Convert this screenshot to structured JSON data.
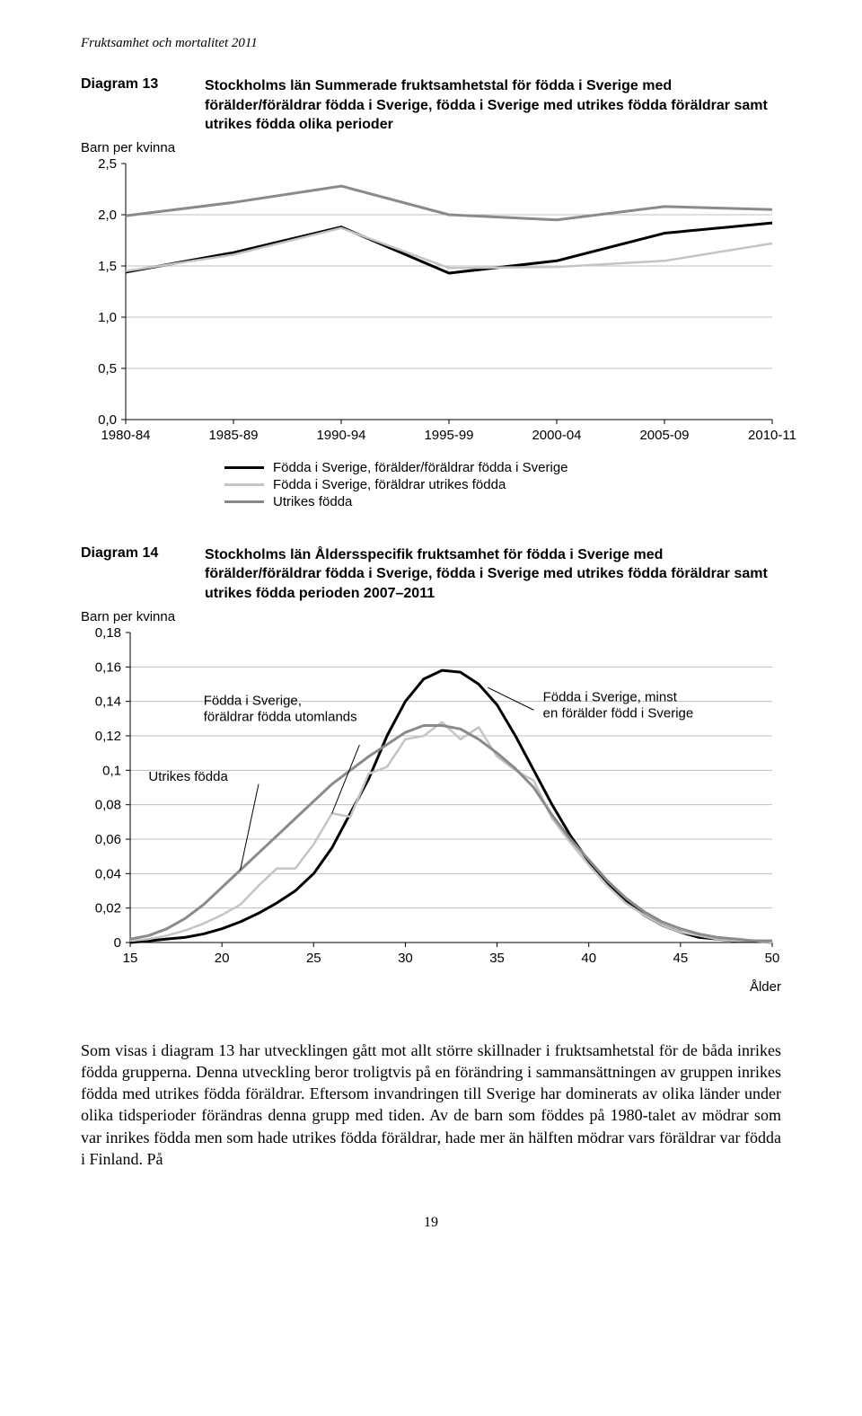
{
  "page": {
    "header": "Fruktsamhet och mortalitet 2011",
    "number": "19"
  },
  "diagram13": {
    "label": "Diagram 13",
    "title": "Stockholms län Summerade fruktsamhetstal för födda i Sverige med förälder/föräldrar födda i Sverige, födda i Sverige med utrikes födda föräldrar samt utrikes födda olika perioder",
    "y_axis_label": "Barn per kvinna",
    "type": "line",
    "categories": [
      "1980-84",
      "1985-89",
      "1990-94",
      "1995-99",
      "2000-04",
      "2005-09",
      "2010-11"
    ],
    "ylim": [
      0.0,
      2.5
    ],
    "ytick_step": 0.5,
    "ytick_labels": [
      "0,0",
      "0,5",
      "1,0",
      "1,5",
      "2,0",
      "2,5"
    ],
    "series": [
      {
        "name": "Födda i Sverige, förälder/föräldrar födda i Sverige",
        "color": "#000000",
        "width": 3,
        "values": [
          1.44,
          1.63,
          1.88,
          1.43,
          1.55,
          1.82,
          1.92
        ]
      },
      {
        "name": "Födda i Sverige, föräldrar utrikes födda",
        "color": "#c4c4c4",
        "width": 2.5,
        "values": [
          1.45,
          1.61,
          1.87,
          1.48,
          1.49,
          1.55,
          1.72
        ]
      },
      {
        "name": "Utrikes födda",
        "color": "#8a8a8a",
        "width": 3,
        "values": [
          1.99,
          2.12,
          2.28,
          2.0,
          1.95,
          2.08,
          2.05
        ]
      }
    ]
  },
  "diagram14": {
    "label": "Diagram 14",
    "title": "Stockholms län Åldersspecifik fruktsamhet för födda i Sverige med förälder/föräldrar födda i Sverige, födda i Sverige med utrikes födda föräldrar samt utrikes födda perioden 2007–2011",
    "y_axis_label": "Barn per kvinna",
    "x_axis_label": "Ålder",
    "type": "line",
    "xlim": [
      15,
      50
    ],
    "xtick_step": 5,
    "ylim": [
      0,
      0.18
    ],
    "ytick_step": 0.02,
    "ytick_labels": [
      "0",
      "0,02",
      "0,04",
      "0,06",
      "0,08",
      "0,1",
      "0,12",
      "0,14",
      "0,16",
      "0,18"
    ],
    "annotations": {
      "a1": "Födda i Sverige,\nföräldrar födda utomlands",
      "a2": "Utrikes födda",
      "a3": "Födda i Sverige, minst\nen förälder född i Sverige"
    },
    "series": [
      {
        "name": "Födda i Sverige minst en förälder född i Sverige",
        "color": "#000000",
        "width": 3,
        "values": [
          [
            15,
            0.0
          ],
          [
            16,
            0.001
          ],
          [
            17,
            0.002
          ],
          [
            18,
            0.003
          ],
          [
            19,
            0.005
          ],
          [
            20,
            0.008
          ],
          [
            21,
            0.012
          ],
          [
            22,
            0.017
          ],
          [
            23,
            0.023
          ],
          [
            24,
            0.03
          ],
          [
            25,
            0.04
          ],
          [
            26,
            0.055
          ],
          [
            27,
            0.075
          ],
          [
            28,
            0.095
          ],
          [
            29,
            0.12
          ],
          [
            30,
            0.14
          ],
          [
            31,
            0.153
          ],
          [
            32,
            0.158
          ],
          [
            33,
            0.157
          ],
          [
            34,
            0.15
          ],
          [
            35,
            0.138
          ],
          [
            36,
            0.12
          ],
          [
            37,
            0.1
          ],
          [
            38,
            0.08
          ],
          [
            39,
            0.062
          ],
          [
            40,
            0.047
          ],
          [
            41,
            0.035
          ],
          [
            42,
            0.024
          ],
          [
            43,
            0.016
          ],
          [
            44,
            0.01
          ],
          [
            45,
            0.006
          ],
          [
            46,
            0.003
          ],
          [
            47,
            0.002
          ],
          [
            48,
            0.001
          ],
          [
            49,
            0.001
          ],
          [
            50,
            0.0
          ]
        ]
      },
      {
        "name": "Födda i Sverige föräldrar födda utomlands",
        "color": "#c4c4c4",
        "width": 2.5,
        "values": [
          [
            15,
            0.001
          ],
          [
            16,
            0.002
          ],
          [
            17,
            0.004
          ],
          [
            18,
            0.007
          ],
          [
            19,
            0.011
          ],
          [
            20,
            0.016
          ],
          [
            21,
            0.022
          ],
          [
            22,
            0.033
          ],
          [
            23,
            0.043
          ],
          [
            24,
            0.043
          ],
          [
            25,
            0.057
          ],
          [
            26,
            0.075
          ],
          [
            27,
            0.073
          ],
          [
            28,
            0.098
          ],
          [
            29,
            0.102
          ],
          [
            30,
            0.118
          ],
          [
            31,
            0.12
          ],
          [
            32,
            0.128
          ],
          [
            33,
            0.118
          ],
          [
            34,
            0.125
          ],
          [
            35,
            0.108
          ],
          [
            36,
            0.1
          ],
          [
            37,
            0.094
          ],
          [
            38,
            0.072
          ],
          [
            39,
            0.058
          ],
          [
            40,
            0.045
          ],
          [
            41,
            0.033
          ],
          [
            42,
            0.023
          ],
          [
            43,
            0.016
          ],
          [
            44,
            0.01
          ],
          [
            45,
            0.006
          ],
          [
            46,
            0.004
          ],
          [
            47,
            0.002
          ],
          [
            48,
            0.001
          ],
          [
            49,
            0.001
          ],
          [
            50,
            0.0
          ]
        ]
      },
      {
        "name": "Utrikes födda",
        "color": "#8a8a8a",
        "width": 3,
        "values": [
          [
            15,
            0.002
          ],
          [
            16,
            0.004
          ],
          [
            17,
            0.008
          ],
          [
            18,
            0.014
          ],
          [
            19,
            0.022
          ],
          [
            20,
            0.032
          ],
          [
            21,
            0.042
          ],
          [
            22,
            0.052
          ],
          [
            23,
            0.062
          ],
          [
            24,
            0.072
          ],
          [
            25,
            0.082
          ],
          [
            26,
            0.092
          ],
          [
            27,
            0.1
          ],
          [
            28,
            0.108
          ],
          [
            29,
            0.115
          ],
          [
            30,
            0.122
          ],
          [
            31,
            0.126
          ],
          [
            32,
            0.126
          ],
          [
            33,
            0.124
          ],
          [
            34,
            0.118
          ],
          [
            35,
            0.11
          ],
          [
            36,
            0.101
          ],
          [
            37,
            0.09
          ],
          [
            38,
            0.074
          ],
          [
            39,
            0.06
          ],
          [
            40,
            0.048
          ],
          [
            41,
            0.036
          ],
          [
            42,
            0.026
          ],
          [
            43,
            0.018
          ],
          [
            44,
            0.012
          ],
          [
            45,
            0.008
          ],
          [
            46,
            0.005
          ],
          [
            47,
            0.003
          ],
          [
            48,
            0.002
          ],
          [
            49,
            0.001
          ],
          [
            50,
            0.001
          ]
        ]
      }
    ]
  },
  "body_paragraph": "Som visas i diagram 13 har utvecklingen gått mot allt större skillnader i fruktsamhetstal för de båda inrikes födda grupperna. Denna utveckling beror troligtvis på en förändring i sammansättningen av gruppen inrikes födda med utrikes födda föräldrar. Eftersom invandringen till Sverige har dominerats av olika länder under olika tidsperioder förändras denna grupp med tiden. Av de barn som föddes på 1980-talet av mödrar som var inrikes födda men som hade utrikes födda föräldrar, hade mer än hälften mödrar vars föräldrar var födda i Finland. På"
}
